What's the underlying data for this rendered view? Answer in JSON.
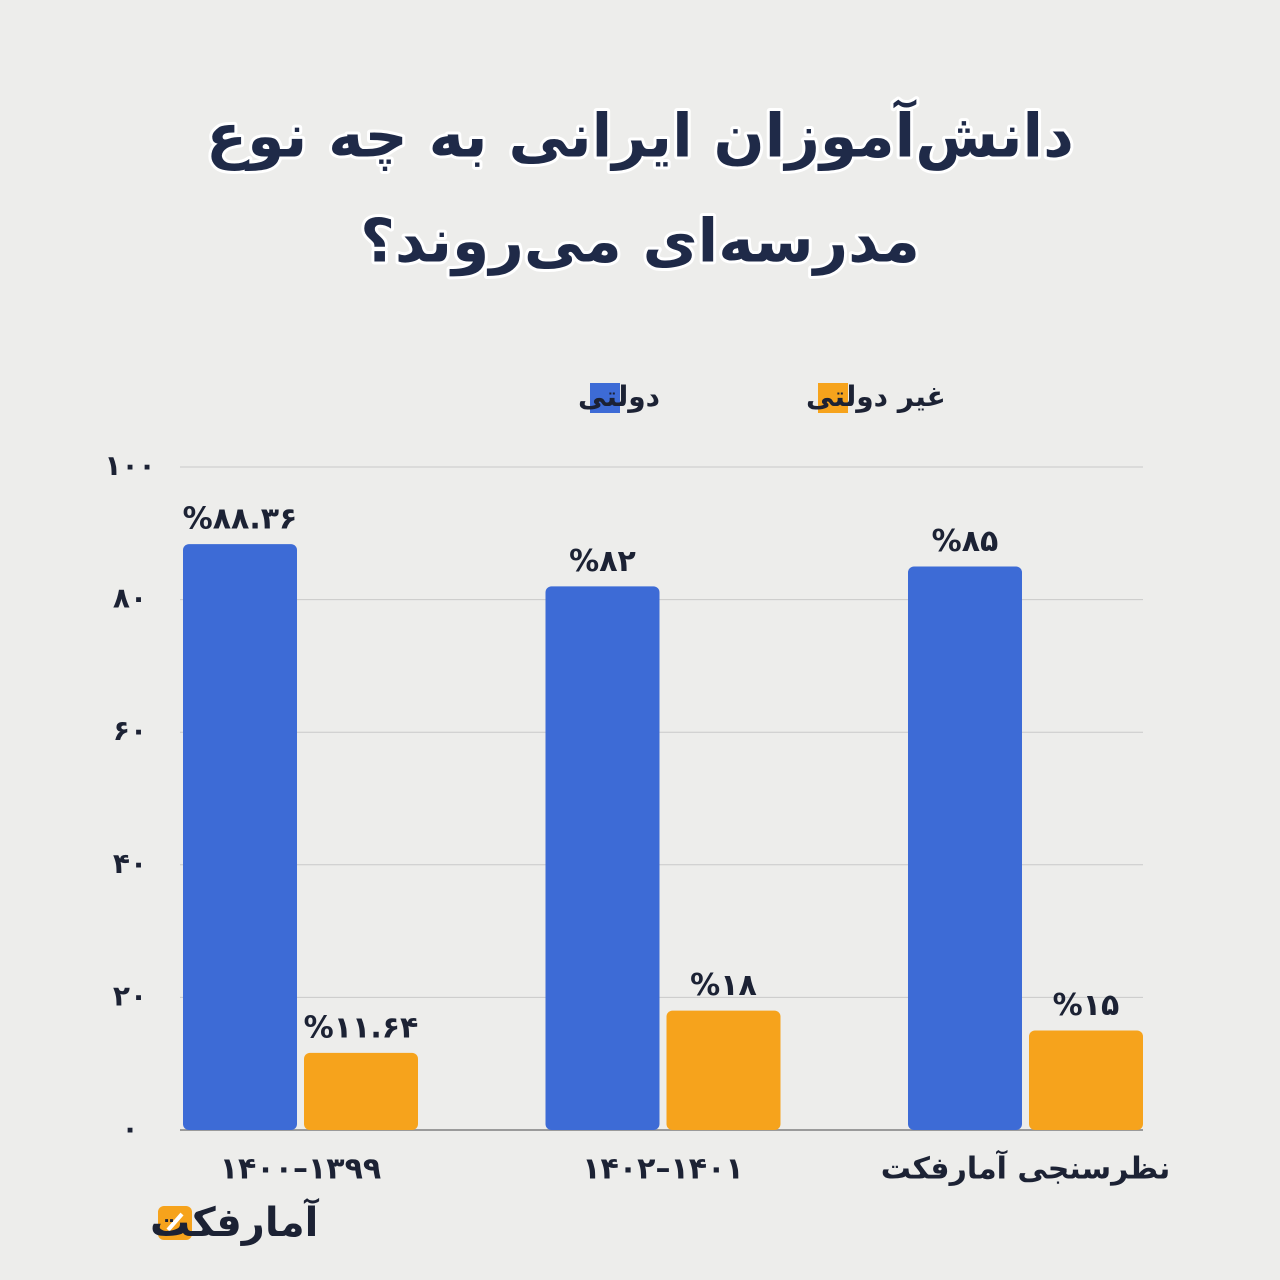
{
  "chart_data": {
    "type": "bar",
    "title": [
      "دانش‌آموزان ایرانی به چه نوع",
      "مدرسه‌ای می‌روند؟"
    ],
    "categories": [
      "۱۳۹۹–۱۴۰۰",
      "۱۴۰۱–۱۴۰۲",
      "نظرسنجی آمارفکت"
    ],
    "series": [
      {
        "name": "دولتی",
        "color": "#3d6bd6",
        "values": [
          88.36,
          82,
          85
        ],
        "value_labels": [
          "%۸۸.۳۶",
          "%۸۲",
          "%۸۵"
        ]
      },
      {
        "name": "غیر دولتی",
        "color": "#f6a31c",
        "values": [
          11.64,
          18,
          15
        ],
        "value_labels": [
          "%۱۱.۶۴",
          "%۱۸",
          "%۱۵"
        ]
      }
    ],
    "ylim": [
      0,
      100
    ],
    "yticks": [
      {
        "value": 0,
        "label": "۰"
      },
      {
        "value": 20,
        "label": "۲۰"
      },
      {
        "value": 40,
        "label": "۴۰"
      },
      {
        "value": 60,
        "label": "۶۰"
      },
      {
        "value": 80,
        "label": "۸۰"
      },
      {
        "value": 100,
        "label": "۱۰۰"
      }
    ],
    "grid": true,
    "logo": "آمارفکت"
  }
}
